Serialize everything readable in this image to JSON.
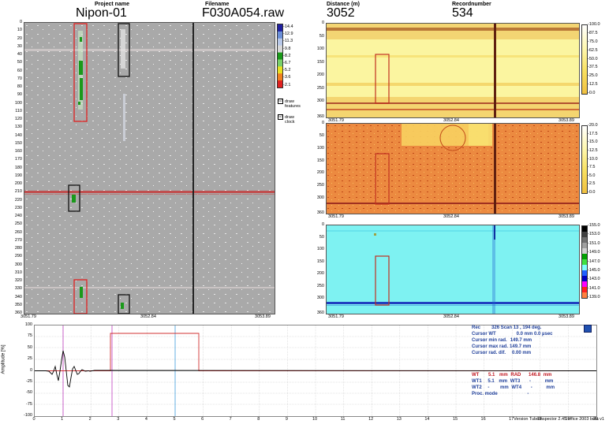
{
  "header": {
    "project_label": "Project name",
    "project_value": "Nipon-01",
    "filename_label": "Filename",
    "filename_value": "F030A054.raw",
    "distance_label": "Distance (m)",
    "distance_value": "3052",
    "record_label": "Recordnumber",
    "record_value": "534"
  },
  "main_view": {
    "y_ticks": [
      "0",
      "10",
      "20",
      "30",
      "40",
      "50",
      "60",
      "70",
      "80",
      "90",
      "100",
      "110",
      "120",
      "130",
      "140",
      "150",
      "160",
      "170",
      "180",
      "190",
      "200",
      "210",
      "220",
      "230",
      "240",
      "250",
      "260",
      "270",
      "280",
      "290",
      "300",
      "310",
      "320",
      "330",
      "340",
      "350",
      "360"
    ],
    "x_ticks": [
      "3051.79",
      "3052.84",
      "3053.89"
    ],
    "colorbar_labels": [
      "-14.4",
      "-12.9",
      "-11.3",
      "-9.8",
      "-8.2",
      "-6.7",
      "-5.2",
      "-3.6",
      "-2.1"
    ],
    "colorbar_colors": [
      "#2020a0",
      "#6a8fd8",
      "#b8c8e8",
      "#d8d8d8",
      "#1a9a1a",
      "#7ad06a",
      "#e8e020",
      "#f08020",
      "#e02020"
    ],
    "checkboxes": [
      {
        "label_1": "draw",
        "label_2": "features",
        "checked": "☑"
      },
      {
        "label_1": "draw",
        "label_2": "clock",
        "checked": "☑"
      }
    ]
  },
  "panel_1": {
    "y_ticks": [
      "0",
      "50",
      "100",
      "150",
      "200",
      "250",
      "300",
      "360"
    ],
    "x_ticks": [
      "3051.79",
      "3052.84",
      "3053.89"
    ],
    "colorbar_labels": [
      "-100.0",
      "-87.5",
      "-75.0",
      "-62.5",
      "-50.0",
      "-37.5",
      "-25.0",
      "-12.5",
      "-0.0"
    ]
  },
  "panel_2": {
    "y_ticks": [
      "0",
      "50",
      "100",
      "150",
      "200",
      "250",
      "300",
      "360"
    ],
    "x_ticks": [
      "3051.79",
      "3052.84",
      "3053.89"
    ],
    "colorbar_labels": [
      "-20.0",
      "-17.5",
      "-15.0",
      "-12.5",
      "-10.0",
      "-7.5",
      "-5.0",
      "-2.5",
      "-0.0"
    ]
  },
  "panel_3": {
    "y_ticks": [
      "0",
      "50",
      "100",
      "150",
      "200",
      "250",
      "300",
      "360"
    ],
    "x_ticks": [
      "3051.79",
      "3052.84",
      "3053.89"
    ],
    "colorbar_labels": [
      "-155.0",
      "-153.0",
      "-151.0",
      "-149.0",
      "-147.0",
      "-145.0",
      "-143.0",
      "-141.0",
      "-139.0"
    ],
    "colorbar_colors": [
      "#000000",
      "#404040",
      "#707070",
      "#a0a0a0",
      "#d0d0d0",
      "#00a000",
      "#40e040",
      "#80ffff",
      "#2060ff",
      "#0000c0",
      "#ff00ff",
      "#ff2020",
      "#ff8040"
    ]
  },
  "ascan": {
    "ylabel": "Amplitude [%]",
    "y_ticks": [
      "100",
      "75",
      "50",
      "25",
      "0",
      "-25",
      "-50",
      "-75",
      "-100"
    ],
    "x_ticks": [
      "0",
      "1",
      "2",
      "3",
      "4",
      "5",
      "6",
      "7",
      "8",
      "9",
      "10",
      "11",
      "12",
      "13",
      "14",
      "15",
      "16",
      "17",
      "18",
      "19",
      "20"
    ]
  },
  "info": {
    "rec_label": "Rec",
    "rec_value": "326 Scan  13 , 194 deg.",
    "cursor_wt_label": "Cursor WT",
    "cursor_wt_value": "0.0 mm 0.0 µsec",
    "cursor_min_label": "Cursor min rad.",
    "cursor_min_value": "149.7 mm",
    "cursor_max_label": "Cursor max rad.",
    "cursor_max_value": "149.7 mm",
    "cursor_dif_label": "Cursor rad. dif.",
    "cursor_dif_value": "0.00 mm",
    "wt_label": "WT",
    "wt_value": "5.1",
    "wt_unit": "mm",
    "rad_label": "RAD",
    "rad_value": "146.8",
    "rad_unit": "mm",
    "wt1_label": "WT1",
    "wt1_value": "5.1",
    "wt1_unit": "mm",
    "wt3_label": "WT3",
    "wt3_value": "-",
    "wt3_unit": "mm",
    "wt2_label": "WT2",
    "wt2_value": "-",
    "wt2_unit": "mm",
    "wt4_label": "WT4",
    "wt4_value": "-",
    "wt4_unit": "mm",
    "proc_label": "Proc. mode",
    "proc_value": "-"
  },
  "footer": {
    "version": "Version TubeInspector 2.45 office 2003 beta v1"
  }
}
